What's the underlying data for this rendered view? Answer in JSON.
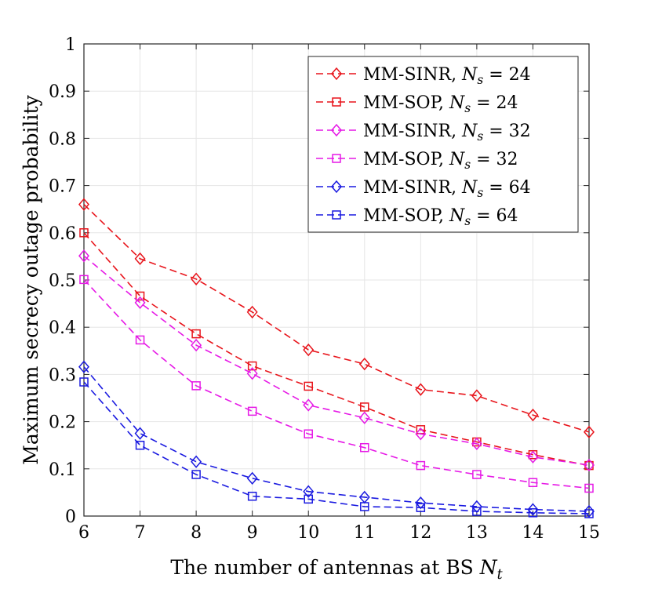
{
  "chart_data": {
    "type": "line",
    "title": "",
    "xlabel": "The number of antennas at BS N_t",
    "ylabel": "Maximum secrecy outage probability",
    "x": [
      6,
      7,
      8,
      9,
      10,
      11,
      12,
      13,
      14,
      15
    ],
    "xlim": [
      6,
      15
    ],
    "ylim": [
      0,
      1
    ],
    "xticks": [
      "6",
      "7",
      "8",
      "9",
      "10",
      "11",
      "12",
      "13",
      "14",
      "15"
    ],
    "yticks": [
      "0",
      "0.1",
      "0.2",
      "0.3",
      "0.4",
      "0.5",
      "0.6",
      "0.7",
      "0.8",
      "0.9",
      "1"
    ],
    "grid": true,
    "legend_position": "top-right",
    "series": [
      {
        "name": "MM-SINR, N_s = 24",
        "label": "MM-SINR, ",
        "ns": "24",
        "color": "#e8141b",
        "marker": "diamond",
        "values": [
          0.66,
          0.545,
          0.502,
          0.432,
          0.352,
          0.322,
          0.268,
          0.255,
          0.214,
          0.178
        ]
      },
      {
        "name": "MM-SOP, N_s = 24",
        "label": "MM-SOP, ",
        "ns": "24",
        "color": "#e8141b",
        "marker": "square",
        "values": [
          0.6,
          0.466,
          0.386,
          0.318,
          0.275,
          0.231,
          0.183,
          0.157,
          0.13,
          0.107
        ]
      },
      {
        "name": "MM-SINR, N_s = 32",
        "label": "MM-SINR, ",
        "ns": "32",
        "color": "#e619e6",
        "marker": "diamond",
        "values": [
          0.551,
          0.452,
          0.362,
          0.302,
          0.235,
          0.208,
          0.174,
          0.153,
          0.125,
          0.108
        ]
      },
      {
        "name": "MM-SOP, N_s = 32",
        "label": "MM-SOP, ",
        "ns": "32",
        "color": "#e619e6",
        "marker": "square",
        "values": [
          0.501,
          0.373,
          0.276,
          0.222,
          0.174,
          0.145,
          0.107,
          0.088,
          0.071,
          0.059
        ]
      },
      {
        "name": "MM-SINR, N_s = 64",
        "label": "MM-SINR, ",
        "ns": "64",
        "color": "#1a1ae0",
        "marker": "diamond",
        "values": [
          0.316,
          0.175,
          0.115,
          0.08,
          0.052,
          0.04,
          0.028,
          0.02,
          0.014,
          0.01
        ]
      },
      {
        "name": "MM-SOP, N_s = 64",
        "label": "MM-SOP, ",
        "ns": "64",
        "color": "#1a1ae0",
        "marker": "square",
        "values": [
          0.284,
          0.15,
          0.088,
          0.042,
          0.036,
          0.02,
          0.018,
          0.01,
          0.007,
          0.005
        ]
      }
    ]
  }
}
